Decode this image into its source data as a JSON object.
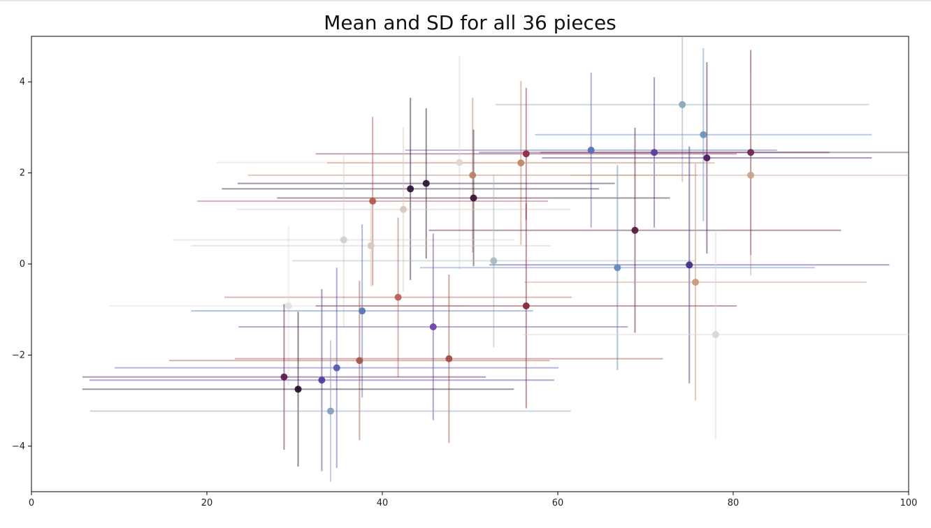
{
  "chart_data": {
    "type": "scatter",
    "title": "Mean and SD for all 36 pieces",
    "xlabel": "",
    "ylabel": "",
    "xlim": [
      0,
      100
    ],
    "ylim": [
      -5,
      5
    ],
    "xticks": [
      "0",
      "20",
      "40",
      "60",
      "80",
      "100"
    ],
    "yticks": [
      "−4",
      "−2",
      "0",
      "2",
      "4"
    ],
    "grid": false,
    "error_bars": "both",
    "colormap": "twilight",
    "points": [
      {
        "x": 74.2,
        "y": 3.5,
        "xerr": 21.3,
        "yerr": 1.7,
        "color": "#8aa9be"
      },
      {
        "x": 76.6,
        "y": 2.84,
        "xerr": 19.2,
        "yerr": 1.9,
        "color": "#6d93b8"
      },
      {
        "x": 63.8,
        "y": 2.5,
        "xerr": 21.2,
        "yerr": 1.7,
        "color": "#5a6db4"
      },
      {
        "x": 71.0,
        "y": 2.45,
        "xerr": 20.0,
        "yerr": 1.65,
        "color": "#5a3d9c"
      },
      {
        "x": 82.0,
        "y": 2.45,
        "xerr": 24.0,
        "yerr": 2.25,
        "color": "#70284f"
      },
      {
        "x": 56.4,
        "y": 2.42,
        "xerr": 24.0,
        "yerr": 1.45,
        "color": "#8e2d45"
      },
      {
        "x": 77.0,
        "y": 2.33,
        "xerr": 18.8,
        "yerr": 2.1,
        "color": "#4b1c60"
      },
      {
        "x": 48.8,
        "y": 2.23,
        "xerr": 27.7,
        "yerr": 2.35,
        "color": "#e2d6d2"
      },
      {
        "x": 55.8,
        "y": 2.22,
        "xerr": 22.1,
        "yerr": 1.8,
        "color": "#c1866b"
      },
      {
        "x": 50.3,
        "y": 1.95,
        "xerr": 25.6,
        "yerr": 1.7,
        "color": "#b88465"
      },
      {
        "x": 82.0,
        "y": 1.95,
        "xerr": 20.5,
        "yerr": 2.2,
        "color": "#caa38f"
      },
      {
        "x": 45.0,
        "y": 1.77,
        "xerr": 21.5,
        "yerr": 1.65,
        "color": "#2f1739"
      },
      {
        "x": 43.2,
        "y": 1.65,
        "xerr": 21.5,
        "yerr": 2.0,
        "color": "#32163a"
      },
      {
        "x": 50.4,
        "y": 1.45,
        "xerr": 22.4,
        "yerr": 1.5,
        "color": "#3e1636"
      },
      {
        "x": 38.9,
        "y": 1.38,
        "xerr": 20.0,
        "yerr": 1.85,
        "color": "#b35a4a"
      },
      {
        "x": 42.4,
        "y": 1.2,
        "xerr": 19.0,
        "yerr": 1.8,
        "color": "#d9c7c0"
      },
      {
        "x": 68.8,
        "y": 0.74,
        "xerr": 23.5,
        "yerr": 2.25,
        "color": "#5a1a40"
      },
      {
        "x": 35.6,
        "y": 0.53,
        "xerr": 19.5,
        "yerr": 1.9,
        "color": "#cfd1d3"
      },
      {
        "x": 38.7,
        "y": 0.4,
        "xerr": 20.5,
        "yerr": 0.9,
        "color": "#dbc6bc"
      },
      {
        "x": 52.7,
        "y": 0.07,
        "xerr": 23.0,
        "yerr": 1.9,
        "color": "#a7bbc1"
      },
      {
        "x": 66.8,
        "y": -0.08,
        "xerr": 22.5,
        "yerr": 2.25,
        "color": "#6489be"
      },
      {
        "x": 75.0,
        "y": -0.02,
        "xerr": 22.8,
        "yerr": 2.6,
        "color": "#4a2e86"
      },
      {
        "x": 75.7,
        "y": -0.4,
        "xerr": 19.5,
        "yerr": 2.6,
        "color": "#c9987d"
      },
      {
        "x": 41.8,
        "y": -0.73,
        "xerr": 19.8,
        "yerr": 1.75,
        "color": "#b56454"
      },
      {
        "x": 29.3,
        "y": -0.92,
        "xerr": 20.5,
        "yerr": 1.75,
        "color": "#e2e0dc"
      },
      {
        "x": 56.4,
        "y": -0.92,
        "xerr": 24.0,
        "yerr": 2.25,
        "color": "#852a3a"
      },
      {
        "x": 37.7,
        "y": -1.03,
        "xerr": 19.5,
        "yerr": 1.9,
        "color": "#5677b8"
      },
      {
        "x": 45.8,
        "y": -1.38,
        "xerr": 22.2,
        "yerr": 2.05,
        "color": "#6a44a9"
      },
      {
        "x": 78.0,
        "y": -1.55,
        "xerr": 22.0,
        "yerr": 2.3,
        "color": "#d3d8da"
      },
      {
        "x": 47.6,
        "y": -2.08,
        "xerr": 24.4,
        "yerr": 1.85,
        "color": "#a24e45"
      },
      {
        "x": 37.4,
        "y": -2.12,
        "xerr": 21.7,
        "yerr": 1.75,
        "color": "#a15a4c"
      },
      {
        "x": 34.8,
        "y": -2.28,
        "xerr": 25.3,
        "yerr": 2.2,
        "color": "#5a58b3"
      },
      {
        "x": 28.8,
        "y": -2.48,
        "xerr": 23.0,
        "yerr": 1.6,
        "color": "#5e1c4e"
      },
      {
        "x": 33.1,
        "y": -2.55,
        "xerr": 26.5,
        "yerr": 2.0,
        "color": "#4f3fa2"
      },
      {
        "x": 30.4,
        "y": -2.75,
        "xerr": 24.6,
        "yerr": 1.7,
        "color": "#2a102e"
      },
      {
        "x": 34.1,
        "y": -3.23,
        "xerr": 27.4,
        "yerr": 1.55,
        "color": "#86a0bc"
      }
    ]
  }
}
